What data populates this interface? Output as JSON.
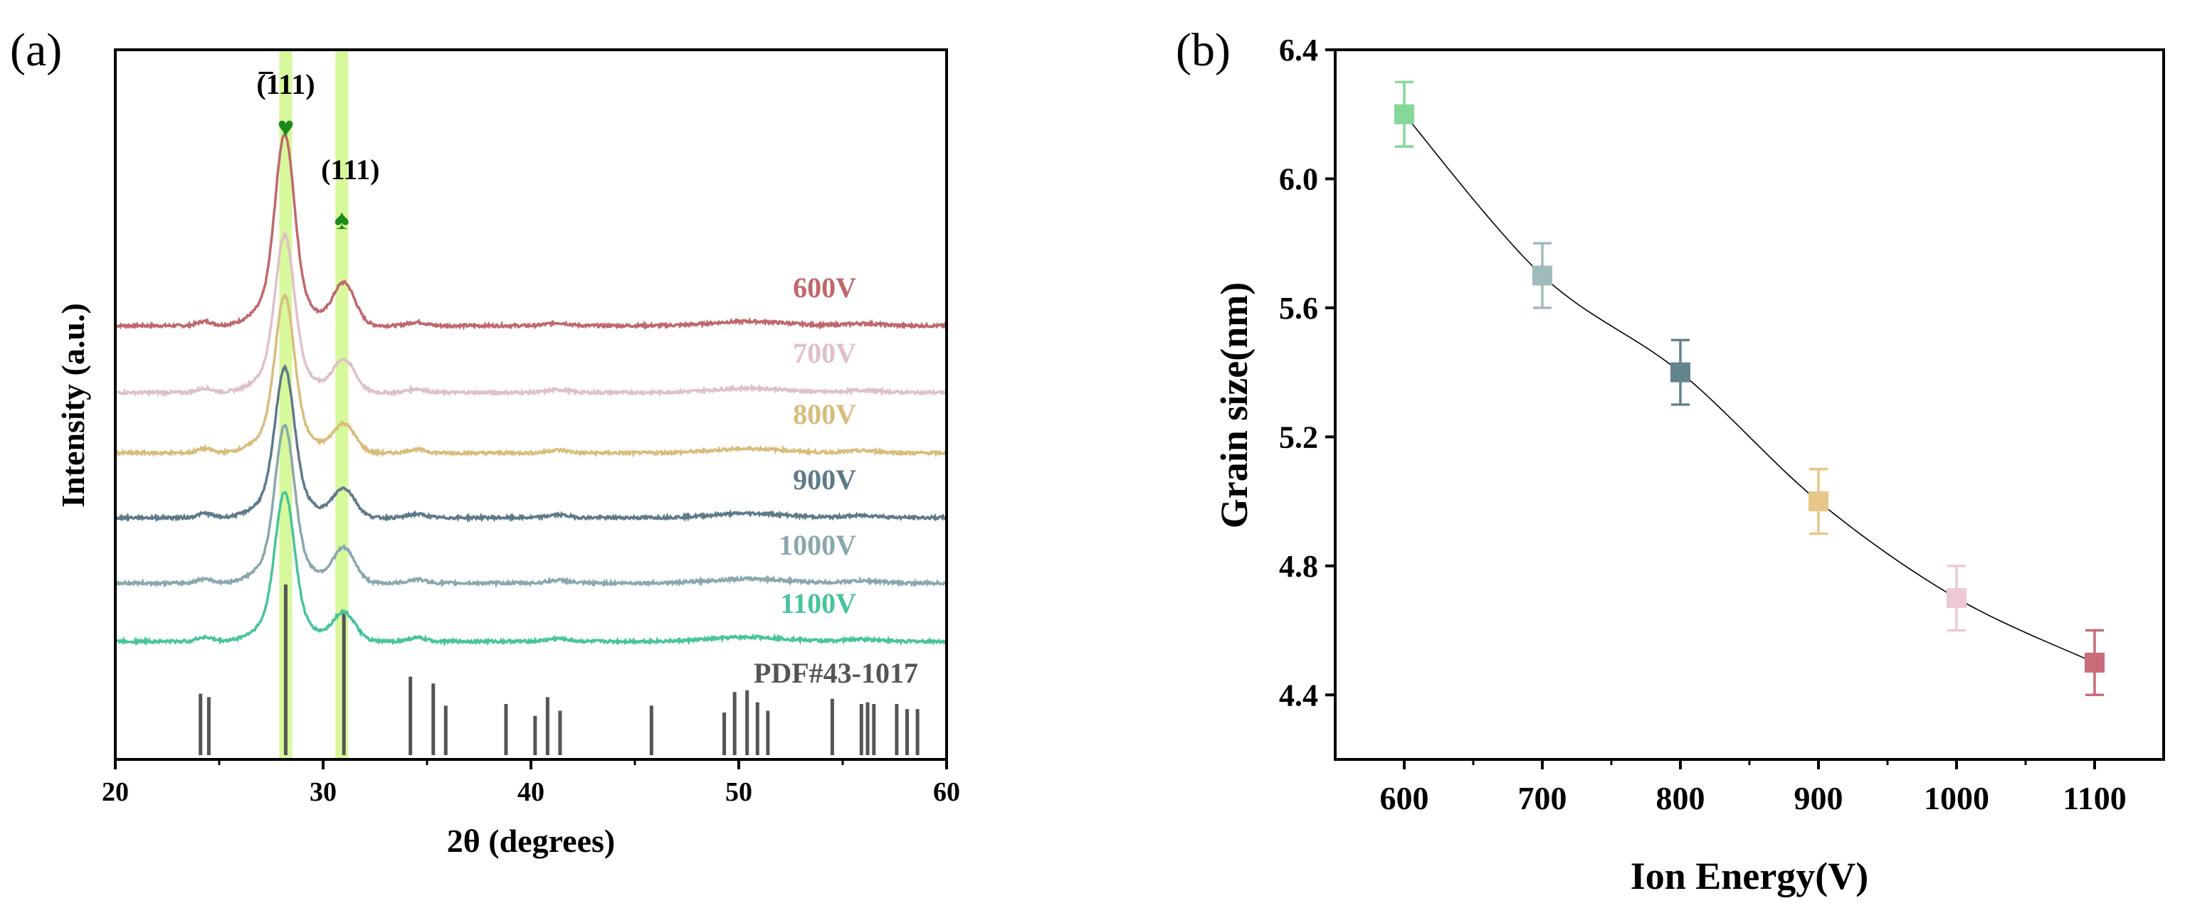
{
  "chart_data": [
    {
      "type": "line",
      "panel_label": "(a)",
      "xlabel": "2θ (degrees)",
      "ylabel": "Intensity (a.u.)",
      "xlim": [
        20,
        60
      ],
      "xticks": [
        20,
        30,
        40,
        50,
        60
      ],
      "highlight_bands": [
        {
          "center": 28.2,
          "label": "(̅111)",
          "label_base": "111",
          "label_overbar": true,
          "marker": "♥",
          "color": "#c9f57a"
        },
        {
          "center": 30.9,
          "label": "(111)",
          "label_base": "111",
          "label_overbar": false,
          "marker": "♠",
          "color": "#c9f57a"
        }
      ],
      "marker_color": "#1a8a1a",
      "series": [
        {
          "name": "600V",
          "color": "#c0676c",
          "offset": 0.0,
          "peak1": 1.0,
          "peak2": 0.22
        },
        {
          "name": "700V",
          "color": "#dfc0c8",
          "offset": 1.0,
          "peak1": 0.82,
          "peak2": 0.17
        },
        {
          "name": "800V",
          "color": "#d9bc7c",
          "offset": 2.0,
          "peak1": 0.82,
          "peak2": 0.15
        },
        {
          "name": "900V",
          "color": "#5d7a89",
          "offset": 3.0,
          "peak1": 0.78,
          "peak2": 0.15
        },
        {
          "name": "1000V",
          "color": "#89a8ad",
          "offset": 4.0,
          "peak1": 0.82,
          "peak2": 0.18
        },
        {
          "name": "1100V",
          "color": "#47c49a",
          "offset": 5.0,
          "peak1": 0.78,
          "peak2": 0.15
        }
      ],
      "reference": {
        "label": "PDF#43-1017",
        "color": "#555555",
        "lines": [
          {
            "x": 24.1,
            "h": 0.36
          },
          {
            "x": 24.5,
            "h": 0.34
          },
          {
            "x": 28.2,
            "h": 1.0
          },
          {
            "x": 31.0,
            "h": 0.83
          },
          {
            "x": 34.2,
            "h": 0.46
          },
          {
            "x": 35.3,
            "h": 0.42
          },
          {
            "x": 35.9,
            "h": 0.29
          },
          {
            "x": 38.8,
            "h": 0.3
          },
          {
            "x": 40.2,
            "h": 0.23
          },
          {
            "x": 40.8,
            "h": 0.34
          },
          {
            "x": 41.4,
            "h": 0.26
          },
          {
            "x": 45.8,
            "h": 0.29
          },
          {
            "x": 49.3,
            "h": 0.25
          },
          {
            "x": 49.8,
            "h": 0.37
          },
          {
            "x": 50.4,
            "h": 0.38
          },
          {
            "x": 50.9,
            "h": 0.31
          },
          {
            "x": 51.4,
            "h": 0.26
          },
          {
            "x": 54.5,
            "h": 0.33
          },
          {
            "x": 55.9,
            "h": 0.3
          },
          {
            "x": 56.2,
            "h": 0.31
          },
          {
            "x": 56.5,
            "h": 0.3
          },
          {
            "x": 57.6,
            "h": 0.3
          },
          {
            "x": 58.1,
            "h": 0.27
          },
          {
            "x": 58.6,
            "h": 0.27
          }
        ]
      }
    },
    {
      "type": "scatter",
      "panel_label": "(b)",
      "xlabel": "Ion Energy(V)",
      "ylabel": "Grain size(nm)",
      "xlim": [
        550,
        1150
      ],
      "ylim": [
        4.2,
        6.4
      ],
      "xticks": [
        600,
        700,
        800,
        900,
        1000,
        1100
      ],
      "yticks": [
        4.4,
        4.8,
        5.2,
        5.6,
        6.0,
        6.4
      ],
      "ytick_labels": [
        "4.4",
        "4.8",
        "5.2",
        "5.6",
        "6.0",
        "6.4"
      ],
      "line_color": "#000000",
      "points": [
        {
          "x": 600,
          "y": 6.2,
          "err": 0.1,
          "color": "#86d898"
        },
        {
          "x": 700,
          "y": 5.7,
          "err": 0.1,
          "color": "#9fbbbc"
        },
        {
          "x": 800,
          "y": 5.4,
          "err": 0.1,
          "color": "#63838d"
        },
        {
          "x": 900,
          "y": 5.0,
          "err": 0.1,
          "color": "#e7c68a"
        },
        {
          "x": 1000,
          "y": 4.7,
          "err": 0.1,
          "color": "#ecc9d3"
        },
        {
          "x": 1100,
          "y": 4.5,
          "err": 0.1,
          "color": "#c76c78"
        }
      ]
    }
  ]
}
